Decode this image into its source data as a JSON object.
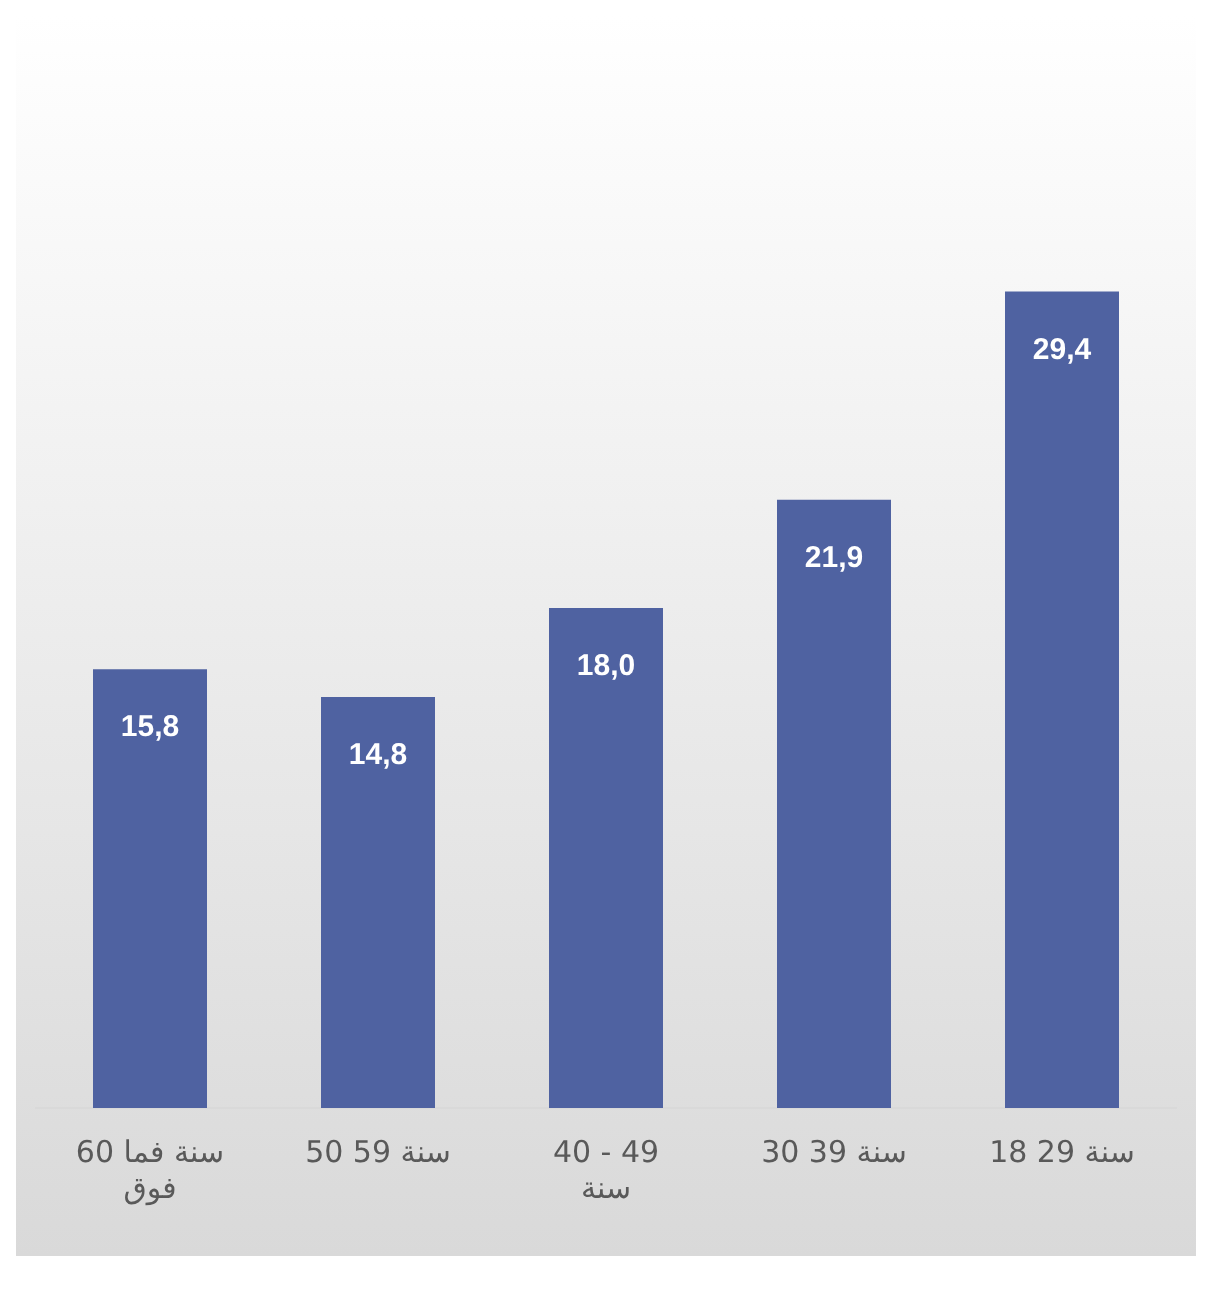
{
  "chart_data": {
    "type": "bar",
    "categories": [
      "60 سنة فما فوق",
      "50 59 سنة",
      "40 - 49 سنة",
      "30 39 سنة",
      "18 29 سنة"
    ],
    "values": [
      15.8,
      14.8,
      18.0,
      21.9,
      29.4
    ],
    "value_labels": [
      "15,8",
      "14,8",
      "18,0",
      "21,9",
      "29,4"
    ],
    "color": "#4f62a1",
    "grid": false,
    "legend": false
  }
}
